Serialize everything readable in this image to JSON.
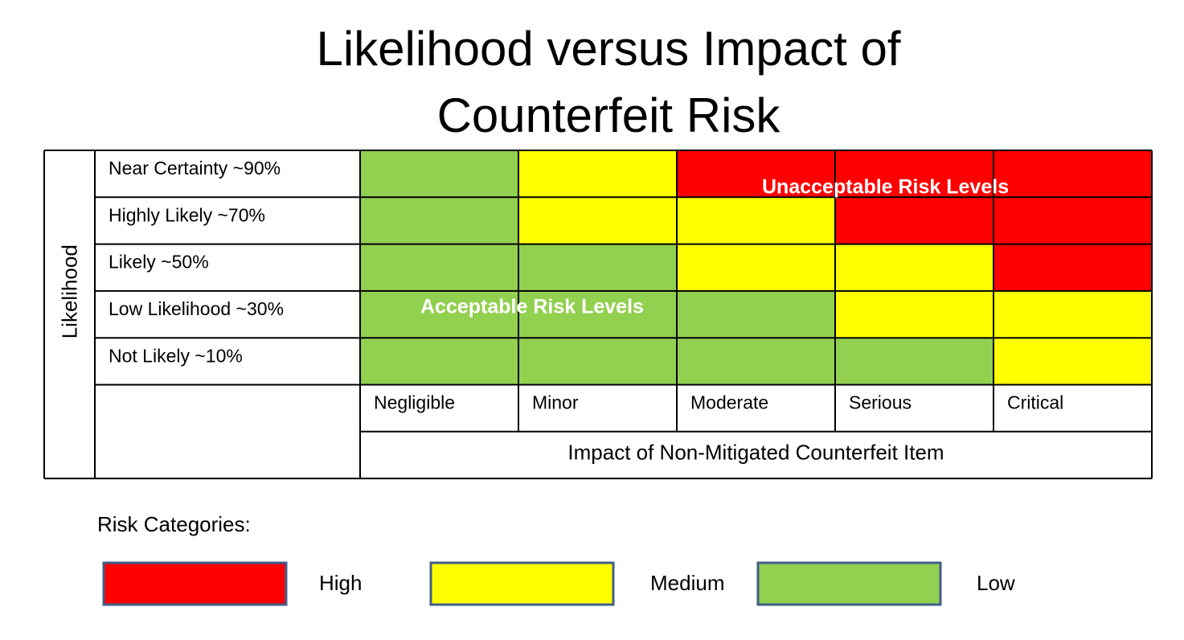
{
  "title_lines": [
    "Likelihood versus Impact of",
    "Counterfeit Risk"
  ],
  "matrix": {
    "y_axis_label": "Likelihood",
    "rows": [
      "Near Certainty ~90%",
      "Highly Likely ~70%",
      "Likely ~50%",
      "Low Likelihood ~30%",
      "Not Likely ~10%"
    ],
    "columns": [
      "Negligible",
      "Minor",
      "Moderate",
      "Serious",
      "Critical"
    ],
    "x_axis_label": "Impact of Non-Mitigated Counterfeit Item",
    "cell_colors": [
      [
        "#92d050",
        "#ffff00",
        "#ff0000",
        "#ff0000",
        "#ff0000"
      ],
      [
        "#92d050",
        "#ffff00",
        "#ffff00",
        "#ff0000",
        "#ff0000"
      ],
      [
        "#92d050",
        "#92d050",
        "#ffff00",
        "#ffff00",
        "#ff0000"
      ],
      [
        "#92d050",
        "#92d050",
        "#92d050",
        "#ffff00",
        "#ffff00"
      ],
      [
        "#92d050",
        "#92d050",
        "#92d050",
        "#92d050",
        "#ffff00"
      ]
    ],
    "annotations": [
      "Unacceptable Risk Levels",
      "Acceptable Risk Levels"
    ]
  },
  "legend": {
    "title": "Risk Categories:",
    "items": [
      {
        "name": "High",
        "color": "#ff0000"
      },
      {
        "name": "Medium",
        "color": "#ffff00"
      },
      {
        "name": "Low",
        "color": "#92d050"
      }
    ]
  }
}
